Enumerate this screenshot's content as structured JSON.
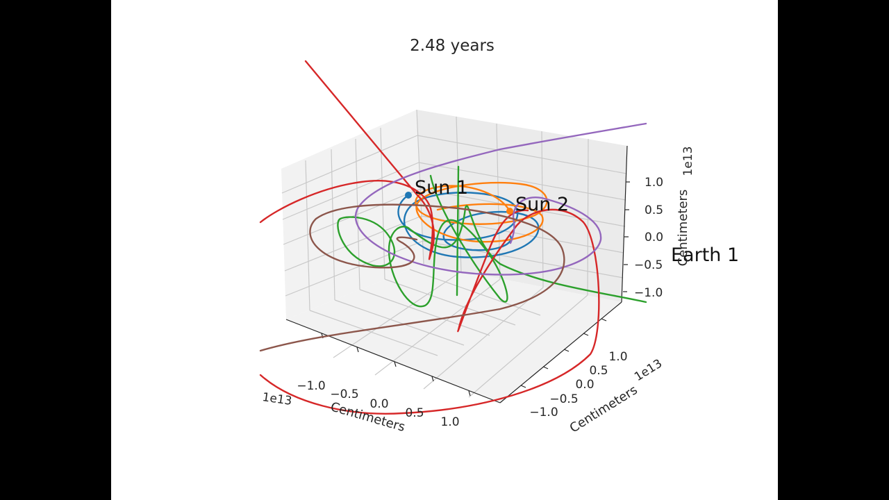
{
  "title": "2.48 years",
  "chart_data": {
    "type": "line",
    "projection": "3d",
    "title": "2.48 years",
    "xlabel": "Centimeters",
    "ylabel": "Centimeters",
    "zlabel": "Centimeters",
    "x_offset_label": "1e13",
    "y_offset_label": "1e13",
    "z_offset_label": "1e13",
    "x_ticks": [
      "−1.0",
      "−0.5",
      "0.0",
      "0.5",
      "1.0"
    ],
    "y_ticks": [
      "−1.0",
      "−0.5",
      "0.0",
      "0.5",
      "1.0"
    ],
    "z_ticks": [
      "−1.0",
      "−0.5",
      "0.0",
      "0.5",
      "1.0"
    ],
    "xlim": [
      -1.4,
      1.4
    ],
    "ylim": [
      -1.4,
      1.4
    ],
    "zlim": [
      -1.4,
      1.4
    ],
    "grid": true,
    "annotations": [
      {
        "text": "Sun 1",
        "color": "#1f77b4"
      },
      {
        "text": "Sun 2",
        "color": "#ff7f0e"
      },
      {
        "text": "Earth 1",
        "color": "#2ca02c"
      }
    ],
    "series_colors": [
      "#1f77b4",
      "#ff7f0e",
      "#2ca02c",
      "#d62728",
      "#9467bd",
      "#8c564b"
    ]
  }
}
